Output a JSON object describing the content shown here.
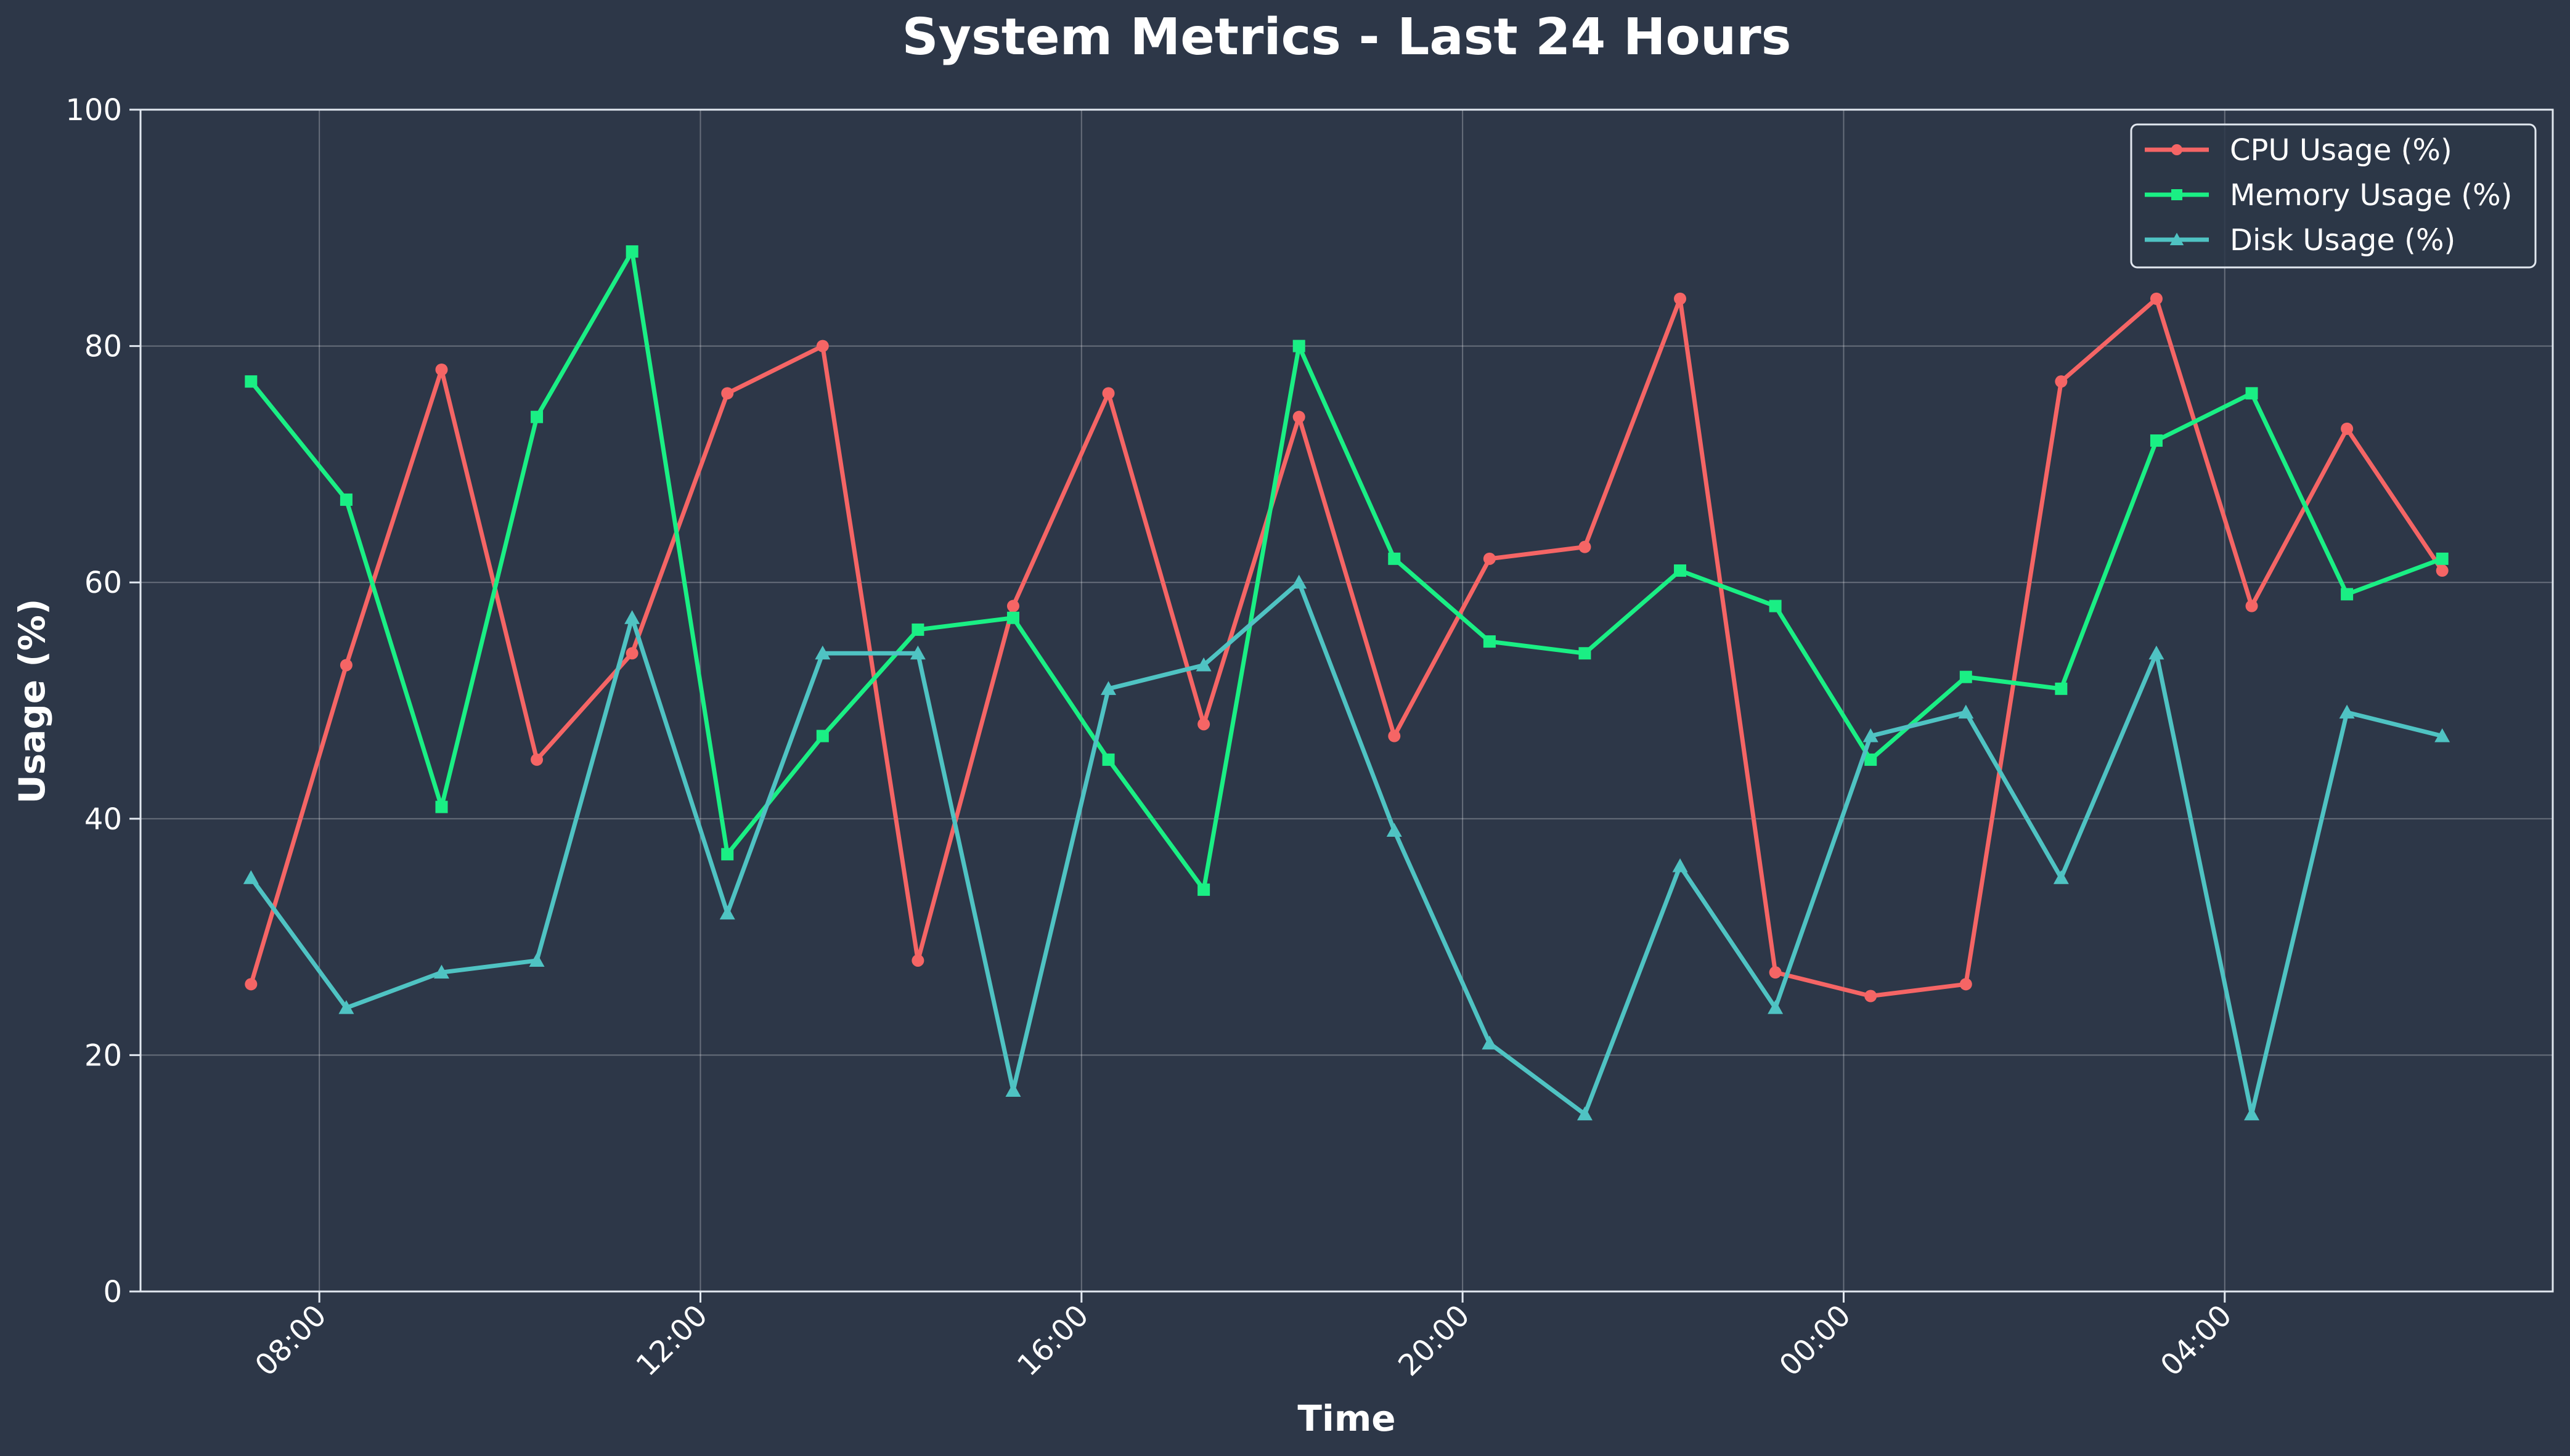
{
  "chart_data": {
    "type": "line",
    "title": "System Metrics - Last 24 Hours",
    "xlabel": "Time",
    "ylabel": "Usage (%)",
    "ylim": [
      0,
      100
    ],
    "yticks": [
      0,
      20,
      40,
      60,
      80,
      100
    ],
    "x_start": "07:17",
    "x_step_hours": 1,
    "x_points": 24,
    "xlim_hours": [
      -1.16,
      24.16
    ],
    "xticks": [
      {
        "label": "08:00",
        "offset_hours": 0.717
      },
      {
        "label": "12:00",
        "offset_hours": 4.717
      },
      {
        "label": "16:00",
        "offset_hours": 8.717
      },
      {
        "label": "20:00",
        "offset_hours": 12.717
      },
      {
        "label": "00:00",
        "offset_hours": 16.717
      },
      {
        "label": "04:00",
        "offset_hours": 20.717
      }
    ],
    "grid": true,
    "legend_position": "top-right",
    "background": "#2d3748",
    "series": [
      {
        "name": "CPU Usage (%)",
        "color": "#f56565",
        "marker": "circle",
        "values": [
          26,
          53,
          78,
          45,
          54,
          76,
          80,
          28,
          58,
          76,
          48,
          74,
          47,
          62,
          63,
          84,
          27,
          25,
          26,
          77,
          84,
          58,
          73,
          61
        ]
      },
      {
        "name": "Memory Usage (%)",
        "color": "#1aef84",
        "marker": "square",
        "values": [
          77,
          67,
          41,
          74,
          88,
          37,
          47,
          56,
          57,
          45,
          34,
          80,
          62,
          55,
          54,
          61,
          58,
          45,
          52,
          51,
          72,
          76,
          59,
          62
        ]
      },
      {
        "name": "Disk Usage (%)",
        "color": "#4fc3c3",
        "marker": "triangle",
        "values": [
          35,
          24,
          27,
          28,
          57,
          32,
          54,
          54,
          17,
          51,
          53,
          60,
          39,
          21,
          15,
          36,
          24,
          47,
          49,
          35,
          54,
          15,
          49,
          47
        ]
      }
    ]
  }
}
